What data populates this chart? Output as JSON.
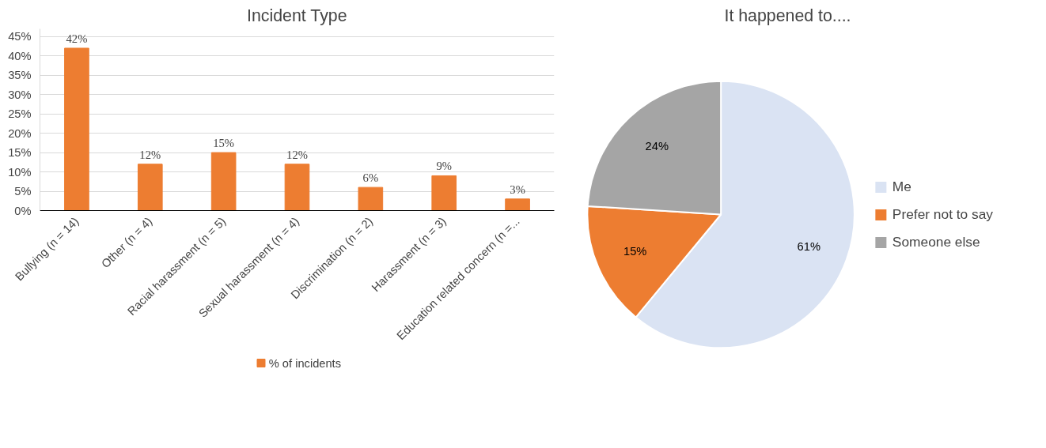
{
  "chart_data": [
    {
      "type": "bar",
      "title": "Incident Type",
      "categories": [
        "Bullying (n = 14)",
        "Other (n = 4)",
        "Racial harassment (n = 5)",
        "Sexual harassment (n = 4)",
        "Discrimination (n = 2)",
        "Harassment (n = 3)",
        "Education related concern (n =..."
      ],
      "series": [
        {
          "name": "% of incidents",
          "color": "#ed7d31",
          "values": [
            42,
            12,
            15,
            12,
            6,
            9,
            3
          ],
          "value_labels": [
            "42%",
            "12%",
            "15%",
            "12%",
            "6%",
            "9%",
            "3%"
          ]
        }
      ],
      "ylim": [
        0,
        47
      ],
      "yticks": [
        {
          "value": 0,
          "label": "0%"
        },
        {
          "value": 5,
          "label": "5%"
        },
        {
          "value": 10,
          "label": "10%"
        },
        {
          "value": 15,
          "label": "15%"
        },
        {
          "value": 20,
          "label": "20%"
        },
        {
          "value": 25,
          "label": "25%"
        },
        {
          "value": 30,
          "label": "30%"
        },
        {
          "value": 35,
          "label": "35%"
        },
        {
          "value": 40,
          "label": "40%"
        },
        {
          "value": 45,
          "label": "45%"
        }
      ],
      "grid": "y",
      "legend": "bottom",
      "data_labels": true
    },
    {
      "type": "pie",
      "title": "It happened to....",
      "categories": [
        "Me",
        "Prefer not to say",
        "Someone else"
      ],
      "values": [
        61,
        15,
        24
      ],
      "value_labels": [
        "61%",
        "15%",
        "24%"
      ],
      "colors": [
        "#dae3f3",
        "#ed7d31",
        "#a5a5a5"
      ],
      "legend": "right",
      "data_labels": true
    }
  ]
}
